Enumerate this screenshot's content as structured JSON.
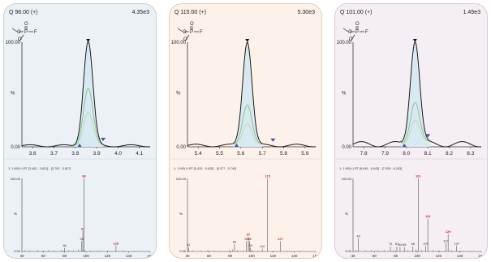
{
  "colors": {
    "panel_backgrounds": [
      "#ecf1f6",
      "#fdf2e9",
      "#f6eef5"
    ],
    "panel_borders": [
      "#c5cfd9",
      "#e2cdb8",
      "#dcc9d8"
    ],
    "peak_fill": "#d9e9f2",
    "trace": "#1a1a1a",
    "sub_traces": [
      "#7fb77e",
      "#b8d8a8"
    ],
    "marker": "#3b4fb0",
    "spectrum_line": "#555555",
    "label_red": "#c0272d"
  },
  "panels": [
    {
      "title": "Q 98.00 (+)",
      "intensity": "4.35e3",
      "structure": "O=P(OC)(OC)F",
      "spectrum_header": "1: 1 MS(+) RT [3.442 - 3.621] - [3.793 - 3.817]"
    },
    {
      "title": "Q 115.00 (+)",
      "intensity": "5.30e3",
      "structure": "O=P(OC)(OCC)F",
      "spectrum_header": "1: 1 MS(+) RT [5.425 - 5.625] - [5.577 - 5.740]"
    },
    {
      "title": "Q 101.00 (+)",
      "intensity": "1.49e3",
      "structure": "O=P(OCC)(OCC)F",
      "spectrum_header": "1: 1 MS(+) RT [8.049 - 8.043] - [7.939 - 8.183]"
    }
  ],
  "chart_data": [
    {
      "type": "line",
      "title": "Q 98.00 (+)",
      "ylabel": "%",
      "xlim": [
        3.55,
        4.15
      ],
      "ylim": [
        0,
        100
      ],
      "xticks": [
        3.6,
        3.7,
        3.8,
        3.9,
        4.0,
        4.1
      ],
      "yticks": [
        "0.00",
        "100.00"
      ],
      "peak_rt": 3.86,
      "peak_sigma": 0.022,
      "baseline_wave": 2,
      "secondary_traces": [
        0.55,
        0.32
      ],
      "integration_markers": [
        3.82,
        3.93
      ],
      "grid": false
    },
    {
      "type": "bar",
      "title": "",
      "ylabel": "%",
      "xlim": [
        40,
        160
      ],
      "ylim": [
        0,
        100
      ],
      "xticks": [
        40,
        60,
        80,
        100,
        120,
        140,
        160
      ],
      "yticks": [
        "0.00",
        "100.00"
      ],
      "labeled_peaks": [
        {
          "mz": 80,
          "value": 5,
          "label": "80",
          "highlight": false
        },
        {
          "mz": 96,
          "value": 14,
          "label": "96",
          "highlight": false
        },
        {
          "mz": 97,
          "value": 28,
          "label": "97",
          "highlight": true
        },
        {
          "mz": 98,
          "value": 100,
          "label": "98",
          "highlight": true
        },
        {
          "mz": 128,
          "value": 8,
          "label": "128",
          "highlight": true
        }
      ],
      "minor_peaks": [
        [
          43,
          2
        ],
        [
          47,
          1.5
        ],
        [
          55,
          2
        ],
        [
          60,
          1
        ],
        [
          65,
          2
        ],
        [
          70,
          1.5
        ],
        [
          77,
          2
        ],
        [
          79,
          1
        ],
        [
          84,
          2
        ],
        [
          88,
          1.5
        ],
        [
          93,
          3
        ],
        [
          99,
          2
        ],
        [
          104,
          1
        ],
        [
          110,
          1
        ],
        [
          113,
          1.5
        ],
        [
          120,
          1
        ],
        [
          135,
          1
        ],
        [
          145,
          1
        ]
      ]
    },
    {
      "type": "line",
      "title": "Q 115.00 (+)",
      "ylabel": "%",
      "xlim": [
        5.35,
        5.95
      ],
      "ylim": [
        0,
        100
      ],
      "xticks": [
        5.4,
        5.5,
        5.6,
        5.7,
        5.8,
        5.9
      ],
      "yticks": [
        "0.00",
        "100.00"
      ],
      "peak_rt": 5.63,
      "peak_sigma": 0.022,
      "baseline_wave": 2.5,
      "secondary_traces": [
        0.4,
        0.22
      ],
      "integration_markers": [
        5.58,
        5.75
      ],
      "grid": false
    },
    {
      "type": "bar",
      "title": "",
      "ylabel": "%",
      "xlim": [
        40,
        160
      ],
      "ylim": [
        0,
        100
      ],
      "xticks": [
        40,
        60,
        80,
        100,
        120,
        140,
        160
      ],
      "yticks": [
        "0.00",
        "100.00"
      ],
      "labeled_peaks": [
        {
          "mz": 41,
          "value": 6,
          "label": "41",
          "highlight": false
        },
        {
          "mz": 84,
          "value": 10,
          "label": "84",
          "highlight": false
        },
        {
          "mz": 95,
          "value": 14,
          "label": "95",
          "highlight": false
        },
        {
          "mz": 97,
          "value": 20,
          "label": "97",
          "highlight": true
        },
        {
          "mz": 98,
          "value": 14,
          "label": "98",
          "highlight": true
        },
        {
          "mz": 99,
          "value": 5,
          "label": "99",
          "highlight": false
        },
        {
          "mz": 110,
          "value": 4,
          "label": "110",
          "highlight": false
        },
        {
          "mz": 115,
          "value": 100,
          "label": "115",
          "highlight": true
        },
        {
          "mz": 127,
          "value": 14,
          "label": "127",
          "highlight": true
        }
      ],
      "minor_peaks": [
        [
          45,
          1.5
        ],
        [
          53,
          1
        ],
        [
          59,
          2
        ],
        [
          65,
          1.5
        ],
        [
          71,
          1
        ],
        [
          79,
          2
        ],
        [
          82,
          3
        ],
        [
          87,
          2
        ],
        [
          92,
          1.5
        ],
        [
          101,
          2
        ],
        [
          106,
          1
        ],
        [
          120,
          1
        ],
        [
          133,
          1
        ],
        [
          145,
          1
        ]
      ]
    },
    {
      "type": "line",
      "title": "Q 101.00 (+)",
      "ylabel": "%",
      "xlim": [
        7.75,
        8.35
      ],
      "ylim": [
        0,
        100
      ],
      "xticks": [
        7.8,
        7.9,
        8.0,
        8.1,
        8.2,
        8.3
      ],
      "yticks": [
        "0.00",
        "100.00"
      ],
      "peak_rt": 8.04,
      "peak_sigma": 0.022,
      "baseline_wave": 5,
      "secondary_traces": [
        0.42,
        0.25
      ],
      "integration_markers": [
        7.99,
        8.1
      ],
      "grid": false
    },
    {
      "type": "bar",
      "title": "",
      "ylabel": "%",
      "xlim": [
        40,
        160
      ],
      "ylim": [
        0,
        100
      ],
      "xticks": [
        40,
        60,
        80,
        100,
        120,
        140,
        160
      ],
      "yticks": [
        "0.00",
        "100.00"
      ],
      "labeled_peaks": [
        {
          "mz": 45,
          "value": 18,
          "label": "45",
          "highlight": false
        },
        {
          "mz": 75,
          "value": 7,
          "label": "75",
          "highlight": false
        },
        {
          "mz": 81,
          "value": 7,
          "label": "81",
          "highlight": false
        },
        {
          "mz": 84,
          "value": 6,
          "label": "84",
          "highlight": false
        },
        {
          "mz": 88,
          "value": 6,
          "label": "88",
          "highlight": false
        },
        {
          "mz": 96,
          "value": 7,
          "label": "96",
          "highlight": false
        },
        {
          "mz": 101,
          "value": 100,
          "label": "101",
          "highlight": true
        },
        {
          "mz": 108,
          "value": 8,
          "label": "108",
          "highlight": false
        },
        {
          "mz": 110,
          "value": 45,
          "label": "110",
          "highlight": true
        },
        {
          "mz": 127,
          "value": 11,
          "label": "127",
          "highlight": false
        },
        {
          "mz": 129,
          "value": 24,
          "label": "129",
          "highlight": true
        },
        {
          "mz": 137,
          "value": 8,
          "label": "137",
          "highlight": false
        }
      ],
      "minor_peaks": [
        [
          43,
          2
        ],
        [
          52,
          1.5
        ],
        [
          57,
          2
        ],
        [
          63,
          1.5
        ],
        [
          69,
          2
        ],
        [
          73,
          1
        ],
        [
          78,
          2
        ],
        [
          91,
          2
        ],
        [
          99,
          3
        ],
        [
          104,
          2
        ],
        [
          115,
          2
        ],
        [
          121,
          1.5
        ],
        [
          132,
          2
        ],
        [
          141,
          1
        ],
        [
          150,
          1
        ]
      ]
    }
  ]
}
